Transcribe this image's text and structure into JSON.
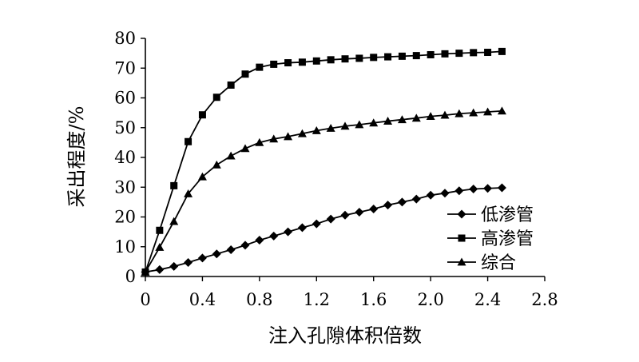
{
  "chart_data": {
    "type": "line",
    "title": "",
    "xlabel": "注入孔隙体积倍数",
    "ylabel": "采出程度/%",
    "xlim": [
      0,
      2.8
    ],
    "ylim": [
      0,
      80
    ],
    "x_ticks": [
      "0",
      "0.4",
      "0.8",
      "1.2",
      "1.6",
      "2.0",
      "2.4",
      "2.8"
    ],
    "y_ticks": [
      "0",
      "10",
      "20",
      "30",
      "40",
      "50",
      "60",
      "70",
      "80"
    ],
    "grid": false,
    "legend_position": "bottom-right",
    "series": [
      {
        "name": "低渗管",
        "marker": "diamond",
        "color": "#000000",
        "x": [
          0,
          0.1,
          0.2,
          0.3,
          0.4,
          0.5,
          0.6,
          0.7,
          0.8,
          0.9,
          1.0,
          1.1,
          1.2,
          1.3,
          1.4,
          1.5,
          1.6,
          1.7,
          1.8,
          1.9,
          2.0,
          2.1,
          2.2,
          2.3,
          2.4,
          2.5
        ],
        "values": [
          1.5,
          2.3,
          3.4,
          4.7,
          6.2,
          7.6,
          9.0,
          10.5,
          12.2,
          13.6,
          15.0,
          16.4,
          17.7,
          19.3,
          20.6,
          21.6,
          22.7,
          24.0,
          25.0,
          26.0,
          27.3,
          28.0,
          28.8,
          29.4,
          29.6,
          29.8
        ]
      },
      {
        "name": "高渗管",
        "marker": "square",
        "color": "#000000",
        "x": [
          0,
          0.1,
          0.2,
          0.3,
          0.4,
          0.5,
          0.6,
          0.7,
          0.8,
          0.9,
          1.0,
          1.1,
          1.2,
          1.3,
          1.4,
          1.5,
          1.6,
          1.7,
          1.8,
          1.9,
          2.0,
          2.1,
          2.2,
          2.3,
          2.4,
          2.5
        ],
        "values": [
          1.5,
          15.5,
          30.5,
          45.3,
          54.3,
          60.2,
          64.3,
          68.0,
          70.3,
          71.3,
          71.8,
          72.0,
          72.4,
          72.8,
          73.1,
          73.3,
          73.6,
          73.8,
          74.0,
          74.2,
          74.5,
          74.8,
          75.0,
          75.2,
          75.3,
          75.6
        ]
      },
      {
        "name": "综合",
        "marker": "triangle",
        "color": "#000000",
        "x": [
          0,
          0.1,
          0.2,
          0.3,
          0.4,
          0.5,
          0.6,
          0.7,
          0.8,
          0.9,
          1.0,
          1.1,
          1.2,
          1.3,
          1.4,
          1.5,
          1.6,
          1.7,
          1.8,
          1.9,
          2.0,
          2.1,
          2.2,
          2.3,
          2.4,
          2.5
        ],
        "values": [
          1.5,
          9.8,
          18.5,
          27.8,
          33.5,
          37.5,
          40.5,
          43.0,
          45.0,
          46.2,
          47.0,
          48.0,
          49.0,
          49.8,
          50.5,
          51.0,
          51.6,
          52.2,
          52.7,
          53.2,
          53.8,
          54.2,
          54.7,
          55.0,
          55.3,
          55.6
        ]
      }
    ]
  }
}
